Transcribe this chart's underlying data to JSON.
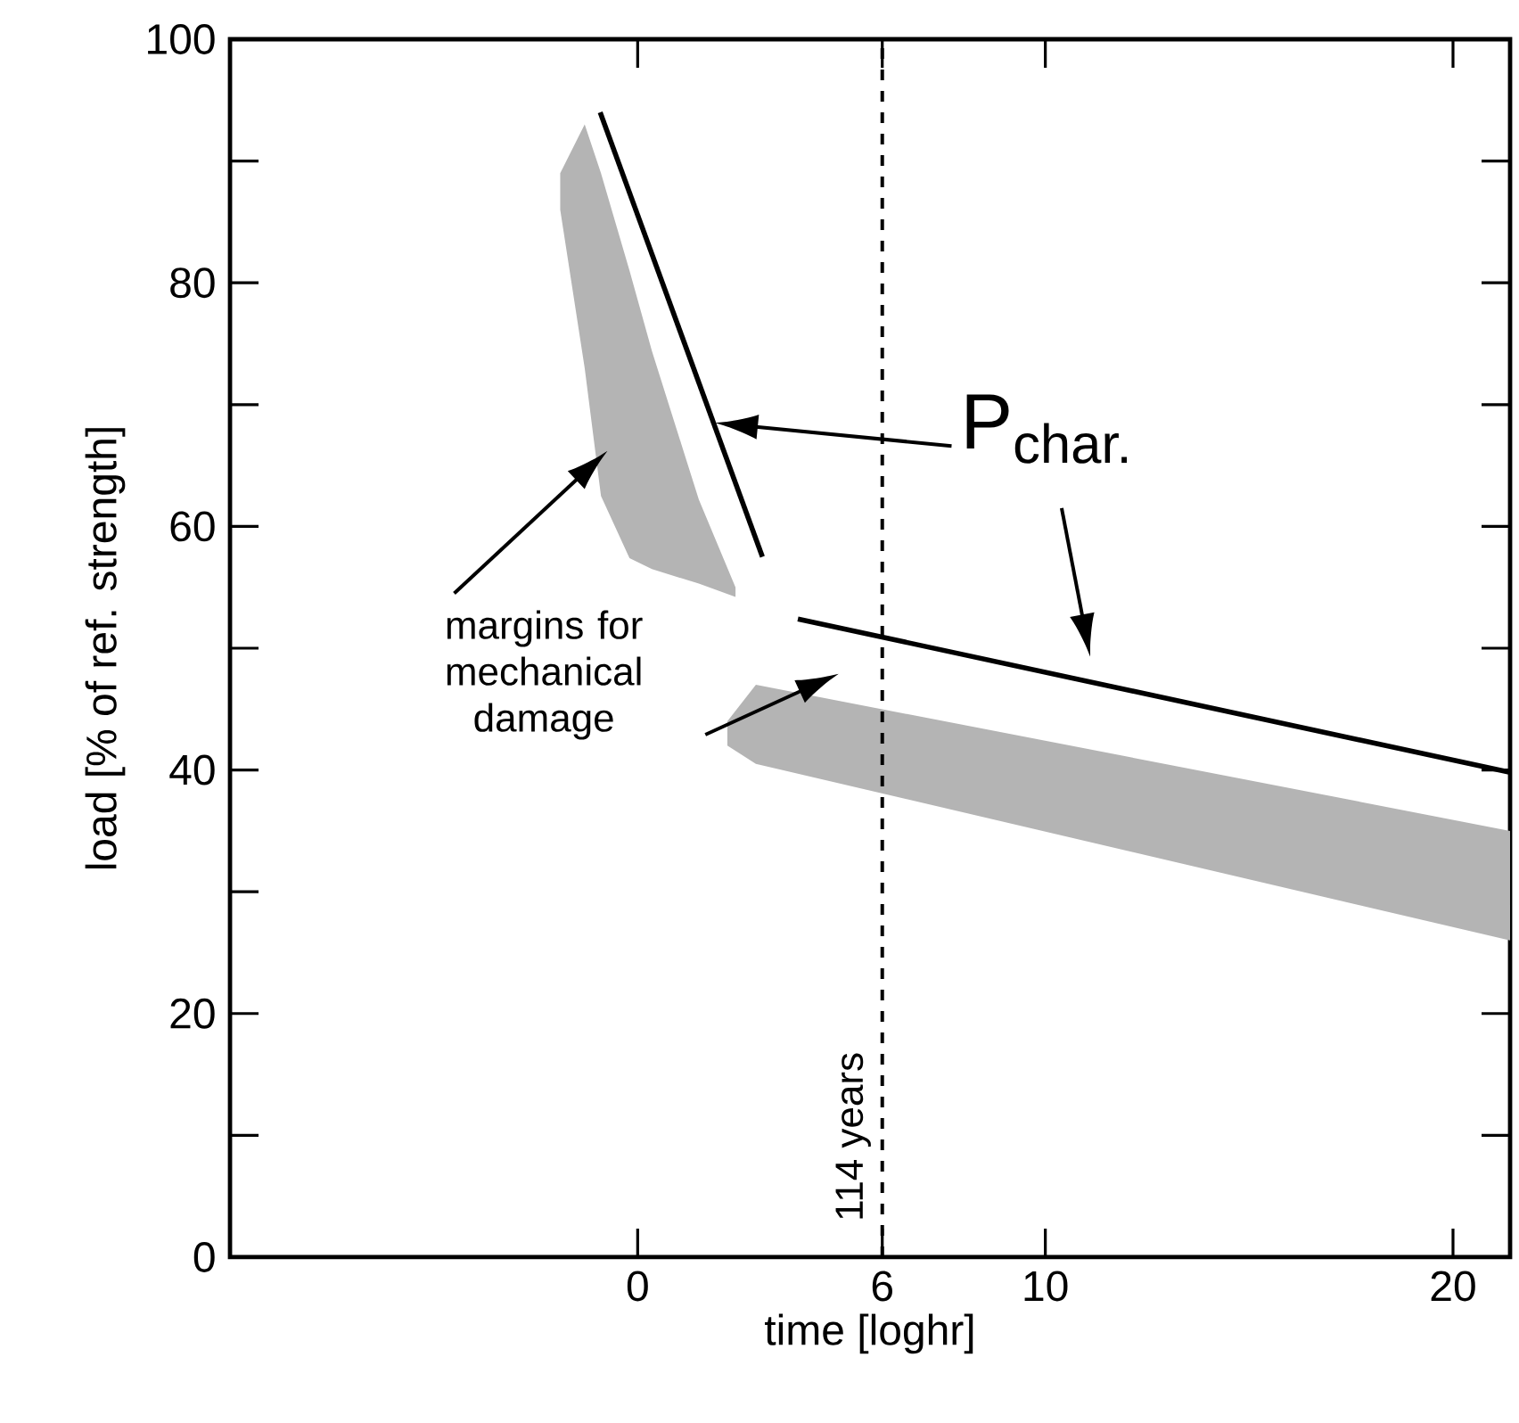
{
  "chart_data": {
    "type": "line",
    "xlabel": "time [loghr]",
    "ylabel": "load [% of ref. strength]",
    "xlim": [
      -10,
      21.4
    ],
    "ylim": [
      0,
      100
    ],
    "xticks": [
      0,
      6,
      10,
      20
    ],
    "yticks": [
      0,
      {
        "value": 10,
        "label": null
      },
      20,
      {
        "value": 30,
        "label": null
      },
      40,
      {
        "value": 50,
        "label": null
      },
      60,
      {
        "value": 70,
        "label": null
      },
      80,
      {
        "value": 90,
        "label": null
      },
      100
    ],
    "series": [
      {
        "color": "#000000",
        "x": [
          -0.92,
          3.06
        ],
        "values": [
          94,
          57.5
        ]
      },
      {
        "color": "#000000",
        "x": [
          3.93,
          21.4
        ],
        "values": [
          52.4,
          39.8
        ]
      },
      {
        "type": "area",
        "color": "#b4b4b4",
        "x": [
          -1.9,
          -1.3,
          -0.9,
          -0.2,
          0.35,
          1.5,
          2.4
        ],
        "values": [
          null,
          null,
          null,
          null,
          null,
          null,
          null
        ],
        "lower": [
          86,
          73,
          62.5,
          57.4,
          56.5,
          55.3,
          54.2
        ],
        "upper": [
          89,
          93,
          89,
          81,
          74.4,
          62.2,
          55
        ]
      },
      {
        "type": "area",
        "color": "#b4b4b4",
        "x": [
          2.2,
          2.9,
          21.4
        ],
        "values": [
          null,
          null,
          null
        ],
        "lower": [
          42,
          40.5,
          26
        ],
        "upper": [
          44,
          47,
          35
        ]
      }
    ],
    "ref_lines": [
      {
        "axis": "x",
        "value": 6,
        "label": "114 years",
        "line_style": "dashed",
        "color": "#000000"
      }
    ],
    "annotations": [
      "P$_{char.}$",
      "margins for mechanical damage"
    ]
  }
}
